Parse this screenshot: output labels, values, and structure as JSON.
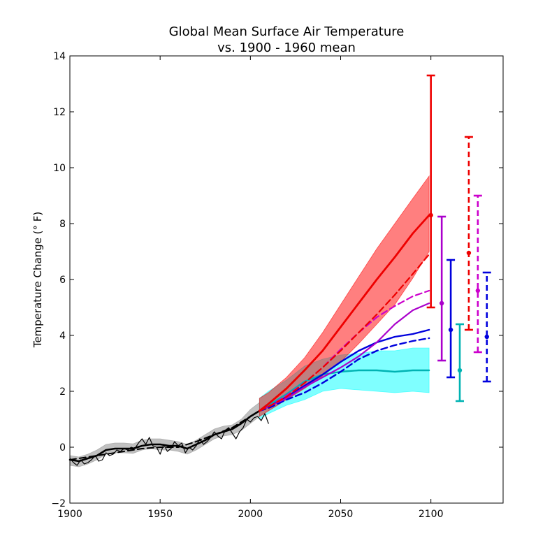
{
  "chart_data": {
    "type": "line",
    "title": "Global Mean Surface Air Temperature",
    "subtitle": "vs. 1900 - 1960 mean",
    "xlabel": "",
    "ylabel": "Temperature Change ($^\\circ$F)",
    "ylabel_display": "Temperature Change (° F)",
    "xlim": [
      1900,
      2140
    ],
    "ylim": [
      -2,
      14
    ],
    "xticks": [
      1900,
      1950,
      2000,
      2050,
      2100
    ],
    "yticks": [
      -2,
      0,
      2,
      4,
      6,
      8,
      10,
      12,
      14
    ],
    "ytick_labels": [
      "−2",
      "0",
      "2",
      "4",
      "6",
      "8",
      "10",
      "12",
      "14"
    ],
    "grid": false,
    "legend": "none",
    "bands": [
      {
        "color": "#a0a0a0",
        "opacity": 0.65,
        "x": [
          1900,
          1905,
          1910,
          1915,
          1920,
          1925,
          1930,
          1935,
          1940,
          1945,
          1950,
          1955,
          1960,
          1965,
          1970,
          1975,
          1980,
          1985,
          1990,
          1995,
          2000,
          2005
        ],
        "upper": [
          -0.3,
          -0.35,
          -0.25,
          -0.1,
          0.1,
          0.15,
          0.15,
          0.12,
          0.25,
          0.3,
          0.3,
          0.25,
          0.2,
          0.1,
          0.25,
          0.45,
          0.65,
          0.75,
          0.8,
          1.0,
          1.35,
          1.6
        ],
        "lower": [
          -0.65,
          -0.7,
          -0.6,
          -0.45,
          -0.25,
          -0.2,
          -0.2,
          -0.22,
          -0.1,
          -0.05,
          -0.1,
          -0.1,
          -0.15,
          -0.25,
          -0.1,
          0.1,
          0.3,
          0.4,
          0.45,
          0.6,
          0.85,
          1.1
        ]
      },
      {
        "color": "#00ffff",
        "opacity": 0.5,
        "x": [
          2005,
          2010,
          2020,
          2030,
          2040,
          2050,
          2060,
          2070,
          2080,
          2090,
          2099
        ],
        "upper": [
          1.75,
          2.0,
          2.4,
          2.9,
          3.15,
          3.3,
          3.35,
          3.45,
          3.45,
          3.55,
          3.55
        ],
        "lower": [
          1.0,
          1.2,
          1.5,
          1.7,
          2.0,
          2.1,
          2.05,
          2.0,
          1.95,
          2.0,
          1.95
        ]
      },
      {
        "color": "#ff0000",
        "opacity": 0.5,
        "x": [
          2005,
          2010,
          2020,
          2030,
          2040,
          2050,
          2060,
          2070,
          2080,
          2090,
          2099
        ],
        "upper": [
          1.75,
          1.95,
          2.5,
          3.2,
          4.1,
          5.1,
          6.1,
          7.1,
          8.0,
          8.9,
          9.7
        ],
        "lower": [
          1.1,
          1.3,
          1.7,
          2.1,
          2.55,
          3.05,
          3.7,
          4.4,
          5.1,
          6.05,
          7.0
        ]
      }
    ],
    "series": [
      {
        "color": "#000000",
        "width": 1.2,
        "dash": false,
        "x": [
          1900,
          1902,
          1904,
          1906,
          1908,
          1910,
          1912,
          1914,
          1916,
          1918,
          1920,
          1922,
          1924,
          1926,
          1928,
          1930,
          1932,
          1934,
          1936,
          1938,
          1940,
          1942,
          1944,
          1946,
          1948,
          1950,
          1952,
          1954,
          1956,
          1958,
          1960,
          1962,
          1964,
          1966,
          1968,
          1970,
          1972,
          1974,
          1976,
          1978,
          1980,
          1982,
          1984,
          1986,
          1988,
          1990,
          1992,
          1994,
          1996,
          1998,
          2000,
          2002,
          2004,
          2006,
          2008,
          2010
        ],
        "y": [
          -0.4,
          -0.55,
          -0.65,
          -0.45,
          -0.6,
          -0.55,
          -0.45,
          -0.3,
          -0.5,
          -0.45,
          -0.2,
          -0.3,
          -0.25,
          -0.1,
          -0.15,
          -0.05,
          -0.1,
          0.0,
          -0.05,
          0.15,
          0.3,
          0.1,
          0.35,
          0.05,
          0.0,
          -0.25,
          0.1,
          -0.15,
          -0.05,
          0.2,
          0.05,
          0.15,
          -0.2,
          0.0,
          -0.1,
          0.05,
          0.3,
          0.1,
          0.2,
          0.35,
          0.55,
          0.4,
          0.3,
          0.6,
          0.7,
          0.5,
          0.3,
          0.55,
          0.7,
          1.0,
          0.9,
          1.05,
          1.1,
          0.95,
          1.2,
          0.85
        ]
      },
      {
        "color": "#000000",
        "width": 2.6,
        "dash": false,
        "x": [
          1900,
          1905,
          1910,
          1915,
          1920,
          1925,
          1930,
          1935,
          1940,
          1945,
          1950,
          1955,
          1960,
          1965,
          1970,
          1975,
          1980,
          1985,
          1990,
          1995,
          2000,
          2005
        ],
        "y": [
          -0.45,
          -0.5,
          -0.4,
          -0.3,
          -0.1,
          -0.05,
          -0.05,
          -0.05,
          0.05,
          0.1,
          0.1,
          0.05,
          0.05,
          -0.05,
          0.1,
          0.25,
          0.45,
          0.55,
          0.65,
          0.85,
          1.1,
          1.3
        ]
      },
      {
        "color": "#000000",
        "width": 2.0,
        "dash": true,
        "x": [
          1900,
          1910,
          1920,
          1930,
          1940,
          1950,
          1960,
          1970,
          1980,
          1990,
          2000
        ],
        "y": [
          -0.45,
          -0.35,
          -0.25,
          -0.15,
          -0.05,
          0.0,
          0.0,
          0.2,
          0.45,
          0.7,
          1.1
        ]
      },
      {
        "color": "#00b3b3",
        "width": 2.4,
        "dash": false,
        "x": [
          2005,
          2010,
          2020,
          2030,
          2040,
          2050,
          2060,
          2070,
          2080,
          2090,
          2099
        ],
        "y": [
          1.3,
          1.5,
          1.9,
          2.35,
          2.6,
          2.7,
          2.75,
          2.75,
          2.7,
          2.75,
          2.75
        ]
      },
      {
        "color": "#0000dd",
        "width": 2.4,
        "dash": false,
        "x": [
          2005,
          2010,
          2020,
          2030,
          2040,
          2050,
          2060,
          2070,
          2080,
          2090,
          2099
        ],
        "y": [
          1.3,
          1.45,
          1.8,
          2.2,
          2.6,
          3.05,
          3.45,
          3.75,
          3.95,
          4.05,
          4.2
        ]
      },
      {
        "color": "#0000dd",
        "width": 2.4,
        "dash": true,
        "x": [
          2005,
          2010,
          2020,
          2030,
          2040,
          2050,
          2060,
          2070,
          2080,
          2090,
          2099
        ],
        "y": [
          1.3,
          1.4,
          1.7,
          1.95,
          2.3,
          2.7,
          3.15,
          3.45,
          3.65,
          3.8,
          3.9
        ]
      },
      {
        "color": "#aa00cc",
        "width": 2.2,
        "dash": false,
        "x": [
          2005,
          2010,
          2020,
          2030,
          2040,
          2050,
          2060,
          2070,
          2080,
          2090,
          2099
        ],
        "y": [
          1.3,
          1.45,
          1.75,
          2.15,
          2.5,
          2.85,
          3.25,
          3.75,
          4.4,
          4.9,
          5.15
        ]
      },
      {
        "color": "#cc00cc",
        "width": 2.2,
        "dash": true,
        "x": [
          2005,
          2010,
          2020,
          2030,
          2040,
          2050,
          2060,
          2070,
          2080,
          2090,
          2099
        ],
        "y": [
          1.3,
          1.45,
          1.85,
          2.3,
          2.85,
          3.5,
          4.1,
          4.65,
          5.05,
          5.4,
          5.6
        ]
      },
      {
        "color": "#ee0000",
        "width": 2.2,
        "dash": true,
        "x": [
          2005,
          2010,
          2020,
          2030,
          2040,
          2050,
          2060,
          2070,
          2080,
          2090,
          2099
        ],
        "y": [
          1.3,
          1.45,
          1.8,
          2.3,
          2.85,
          3.45,
          4.1,
          4.75,
          5.45,
          6.2,
          6.9
        ]
      },
      {
        "color": "#ee0000",
        "width": 2.8,
        "dash": false,
        "x": [
          2005,
          2010,
          2020,
          2030,
          2040,
          2050,
          2060,
          2070,
          2080,
          2090,
          2099
        ],
        "y": [
          1.3,
          1.55,
          2.1,
          2.75,
          3.45,
          4.3,
          5.15,
          6.0,
          6.8,
          7.65,
          8.3
        ]
      }
    ],
    "error_bars": [
      {
        "x": 2100,
        "y": 8.3,
        "low": 5.0,
        "high": 13.3,
        "color": "#ee0000",
        "dash": false
      },
      {
        "x": 2106,
        "y": 5.15,
        "low": 3.1,
        "high": 8.25,
        "color": "#aa00cc",
        "dash": false
      },
      {
        "x": 2111,
        "y": 4.2,
        "low": 2.5,
        "high": 6.7,
        "color": "#0000dd",
        "dash": false
      },
      {
        "x": 2116,
        "y": 2.75,
        "low": 1.65,
        "high": 4.4,
        "color": "#00b3b3",
        "dash": false
      },
      {
        "x": 2121,
        "y": 6.95,
        "low": 4.2,
        "high": 11.1,
        "color": "#ee0000",
        "dash": true
      },
      {
        "x": 2126,
        "y": 5.6,
        "low": 3.4,
        "high": 9.0,
        "color": "#cc00cc",
        "dash": true
      },
      {
        "x": 2131,
        "y": 3.95,
        "low": 2.35,
        "high": 6.25,
        "color": "#0000dd",
        "dash": true
      }
    ]
  }
}
